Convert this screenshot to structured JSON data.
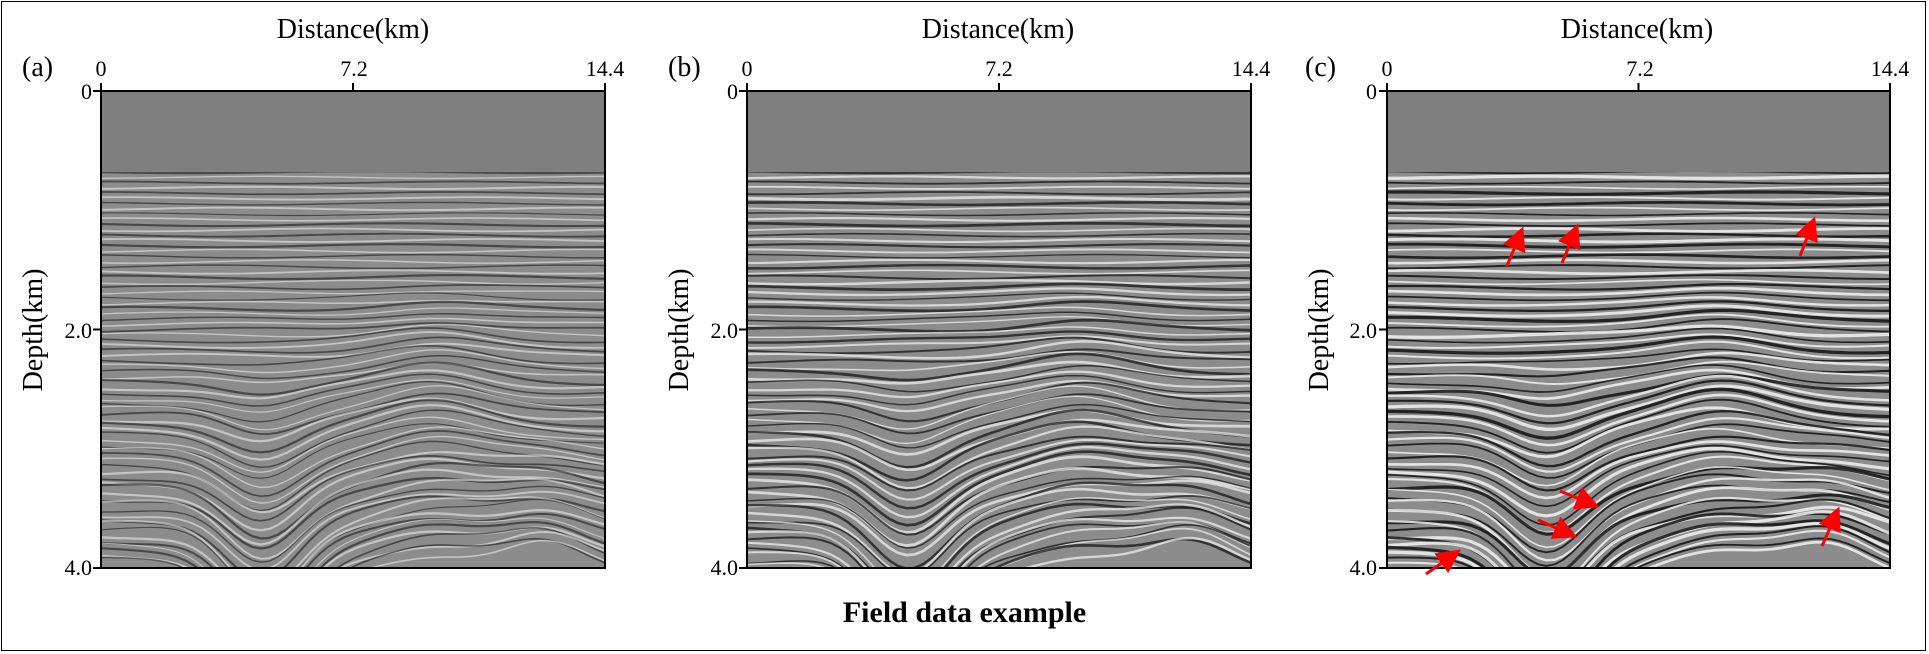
{
  "figure": {
    "caption": "Field data example",
    "panels": [
      {
        "id": "a",
        "label": "(a)",
        "x_title": "Distance(km)",
        "y_title": "Depth(km)",
        "x_ticks": [
          "0",
          "7.2",
          "14.4"
        ],
        "y_ticks": [
          "0",
          "2.0",
          "4.0"
        ],
        "description_variant": "blurred",
        "arrows": 0
      },
      {
        "id": "b",
        "label": "(b)",
        "x_title": "Distance(km)",
        "y_title": "Depth(km)",
        "x_ticks": [
          "0",
          "7.2",
          "14.4"
        ],
        "y_ticks": [
          "0",
          "2.0",
          "4.0"
        ],
        "description_variant": "sharp",
        "arrows": 0
      },
      {
        "id": "c",
        "label": "(c)",
        "x_title": "Distance(km)",
        "y_title": "Depth(km)",
        "x_ticks": [
          "0",
          "7.2",
          "14.4"
        ],
        "y_ticks": [
          "0",
          "2.0",
          "4.0"
        ],
        "description_variant": "sharpest",
        "arrows": 8
      }
    ],
    "colors": {
      "water": "#7f7f7f",
      "arrow": "#ff0000",
      "axis": "#000000"
    }
  }
}
